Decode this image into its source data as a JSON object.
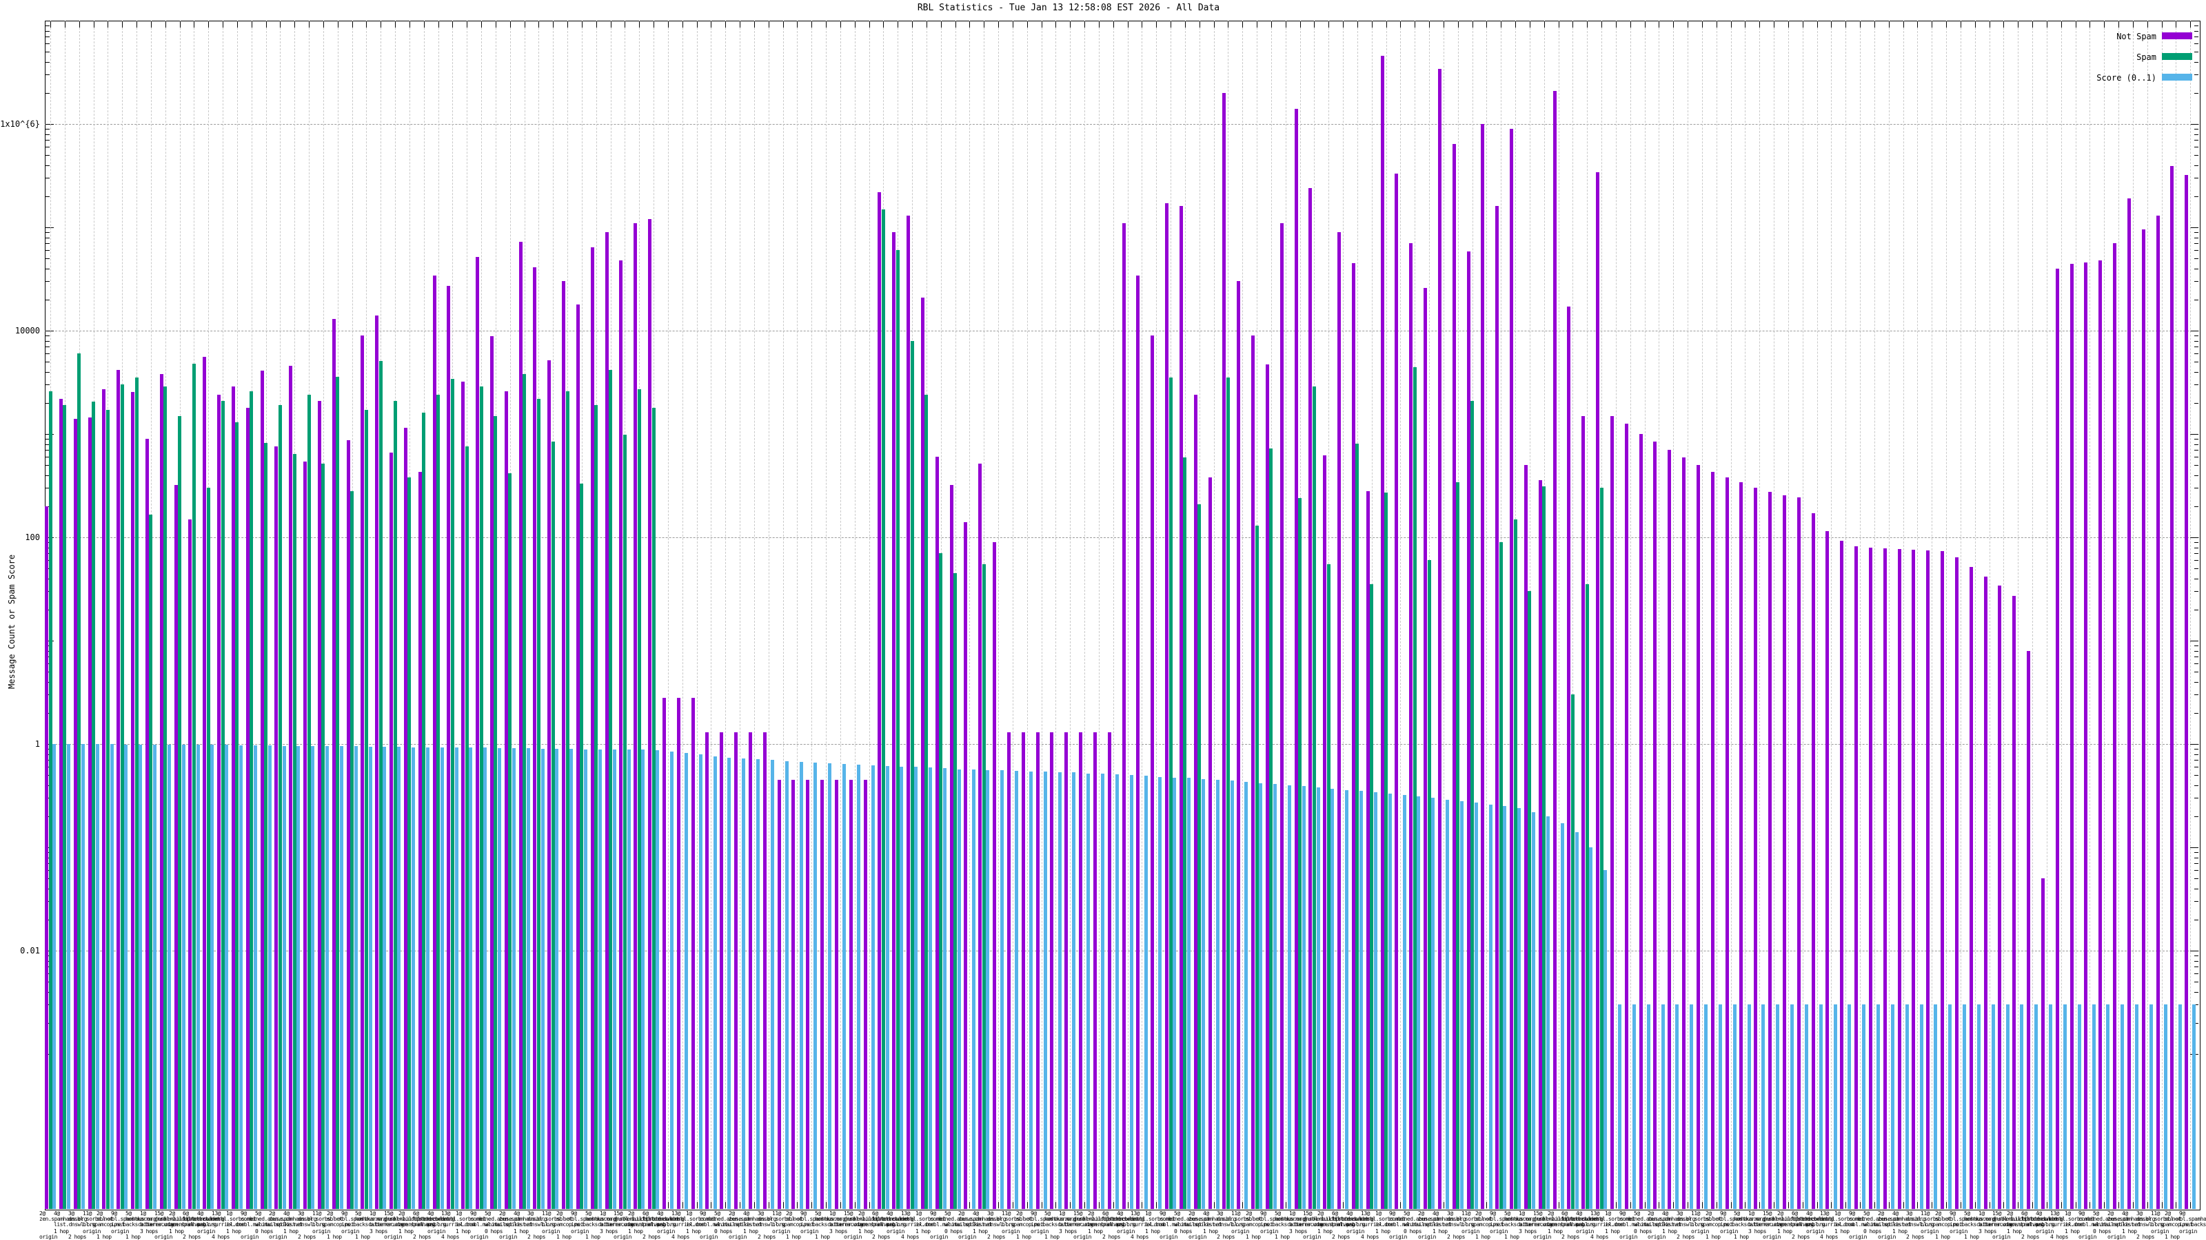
{
  "title": "RBL Statistics - Tue Jan 13 12:58:08 EST 2026 - All Data",
  "y_axis": {
    "label": "Message Count or Spam Score",
    "ticks": [
      {
        "label": "1x10^{6}",
        "value": 1000000
      },
      {
        "label": "10000",
        "value": 10000
      },
      {
        "label": "100",
        "value": 100
      },
      {
        "label": "1",
        "value": 1
      },
      {
        "label": "0.01",
        "value": 0.01
      }
    ]
  },
  "legend": {
    "position": "top-right"
  },
  "chart_data": {
    "type": "bar",
    "title": "RBL Statistics - Tue Jan 13 12:58:08 EST 2026 - All Data",
    "ylabel": "Message Count or Spam Score",
    "y_scale": "log",
    "ylim": [
      0.0001,
      10000000
    ],
    "grid": true,
    "colors": {
      "not_spam": "#9400d3",
      "spam": "#009e73",
      "score": "#56b4e9"
    },
    "x_label_variants": [
      "2@zen.spamhaus.org|origin",
      "4@list.dnswl.org|1 hop",
      "3@dnsbl.sorbs.net|2 hops",
      "11@bl.spamcop.net|origin",
      "2@sbl-xbl.spamhaus.org|1 hop",
      "9@ips.backscatterer.org|origin",
      "5@hostkarma.junkemailfilter.com|1 hop",
      "1@b.barracudacentral.org|3 hops",
      "15@dnsbl-1.uceprotect.net|origin",
      "2@zen.spamhaus.org|1 hop",
      "6@list.dnswl.org|2 hops",
      "4@psbl.surriel.com|origin",
      "13@dnsbl.sorbs.net|4 hops",
      "1@ix.dnsbl.manitu.net|1 hop",
      "9@combined.abuse.ch|origin",
      "5@wl.mailspike.net|0 hops"
    ],
    "series": [
      {
        "name": "Not Spam",
        "color": "#9400d3",
        "values": [
          200,
          2200,
          1400,
          1450,
          2700,
          4200,
          2550,
          900,
          3800,
          320,
          150,
          5600,
          2400,
          2900,
          1800,
          4100,
          760,
          4600,
          540,
          2100,
          13000,
          870,
          9000,
          14000,
          660,
          1150,
          430,
          34000,
          27000,
          3200,
          52000,
          8800,
          2600,
          72000,
          41000,
          5200,
          30000,
          18000,
          64000,
          90000,
          48000,
          110000,
          120000,
          2.8,
          2.8,
          2.8,
          1.3,
          1.3,
          1.3,
          1.3,
          1.3,
          0.45,
          0.45,
          0.45,
          0.45,
          0.45,
          0.45,
          0.45,
          220000,
          90000,
          130000,
          21000,
          600,
          320,
          140,
          520,
          90,
          1.3,
          1.3,
          1.3,
          1.3,
          1.3,
          1.3,
          1.3,
          1.3,
          110000,
          34000,
          9000,
          170000,
          160000,
          2400,
          380,
          2000000,
          30000,
          9000,
          4700,
          110000,
          1400000,
          240000,
          620,
          90000,
          45000,
          280,
          4600000,
          330000,
          70000,
          26000,
          3400000,
          640000,
          58000,
          1000000,
          160000,
          900000,
          500,
          360,
          2100000,
          17000,
          1500,
          340000,
          1500,
          1250,
          1000,
          840,
          700,
          590,
          500,
          430,
          380,
          340,
          300,
          275,
          255,
          245,
          170,
          115,
          92,
          82,
          79,
          78,
          77,
          76,
          75,
          74,
          64,
          52,
          42,
          34,
          27,
          8,
          0.05,
          40000,
          44000,
          46000,
          48000,
          70000,
          190000,
          95000,
          130000,
          390000,
          320000
        ]
      },
      {
        "name": "Spam",
        "color": "#009e73",
        "values": [
          2600,
          1900,
          6000,
          2050,
          1700,
          3000,
          3500,
          165,
          2900,
          1500,
          4800,
          300,
          2100,
          1300,
          2600,
          820,
          1900,
          640,
          2400,
          520,
          3600,
          280,
          1700,
          5100,
          2100,
          380,
          1600,
          2400,
          3400,
          760,
          2900,
          1500,
          420,
          3800,
          2200,
          850,
          2600,
          330,
          1900,
          4200,
          980,
          2700,
          1800,
          0,
          0,
          0,
          0,
          0,
          0,
          0,
          0,
          0,
          0,
          0,
          0,
          0,
          0,
          0,
          150000,
          60000,
          8000,
          2400,
          70,
          45,
          0,
          55,
          0,
          0,
          0,
          0,
          0,
          0,
          0,
          0,
          0,
          0,
          0,
          0,
          3500,
          590,
          210,
          0,
          3500,
          0,
          130,
          720,
          0,
          240,
          2900,
          55,
          0,
          810,
          35,
          270,
          0,
          4400,
          60,
          0,
          340,
          2100,
          0,
          90,
          150,
          30,
          310,
          0,
          3,
          35,
          300,
          0,
          0,
          0,
          0,
          0,
          0,
          0,
          0,
          0,
          0,
          0,
          0,
          0,
          0,
          0,
          0,
          0,
          0,
          0,
          0,
          0,
          0,
          0,
          0,
          0,
          0,
          0,
          0,
          0,
          0,
          0,
          0,
          0,
          0,
          0,
          0,
          0,
          0,
          0,
          0,
          0
        ]
      },
      {
        "name": "Score (0..1)",
        "color": "#56b4e9",
        "values": [
          1,
          1,
          1,
          1,
          1,
          0.99,
          0.99,
          0.99,
          0.99,
          0.98,
          0.98,
          0.98,
          0.98,
          0.97,
          0.97,
          0.97,
          0.96,
          0.96,
          0.96,
          0.95,
          0.95,
          0.95,
          0.94,
          0.94,
          0.94,
          0.93,
          0.93,
          0.93,
          0.92,
          0.92,
          0.92,
          0.91,
          0.91,
          0.91,
          0.9,
          0.9,
          0.9,
          0.89,
          0.89,
          0.89,
          0.88,
          0.88,
          0.87,
          0.84,
          0.82,
          0.8,
          0.76,
          0.74,
          0.72,
          0.71,
          0.7,
          0.68,
          0.67,
          0.66,
          0.65,
          0.64,
          0.63,
          0.62,
          0.61,
          0.6,
          0.6,
          0.59,
          0.58,
          0.57,
          0.57,
          0.56,
          0.56,
          0.55,
          0.54,
          0.54,
          0.53,
          0.53,
          0.52,
          0.52,
          0.51,
          0.5,
          0.49,
          0.48,
          0.47,
          0.47,
          0.46,
          0.45,
          0.44,
          0.43,
          0.42,
          0.41,
          0.4,
          0.39,
          0.38,
          0.37,
          0.36,
          0.35,
          0.34,
          0.33,
          0.32,
          0.31,
          0.3,
          0.29,
          0.28,
          0.27,
          0.26,
          0.25,
          0.24,
          0.22,
          0.2,
          0.17,
          0.14,
          0.1,
          0.06,
          0.003,
          0.003,
          0.003,
          0.003,
          0.003,
          0.003,
          0.003,
          0.003,
          0.003,
          0.003,
          0.003,
          0.003,
          0.003,
          0.003,
          0.003,
          0.003,
          0.003,
          0.003,
          0.003,
          0.003,
          0.003,
          0.003,
          0.003,
          0.003,
          0.003,
          0.003,
          0.003,
          0.003,
          0.003,
          0.003,
          0.003,
          0.003,
          0.003,
          0.003,
          0.003,
          0.003,
          0.003,
          0.003,
          0.003,
          0.003,
          0.003
        ]
      }
    ]
  }
}
